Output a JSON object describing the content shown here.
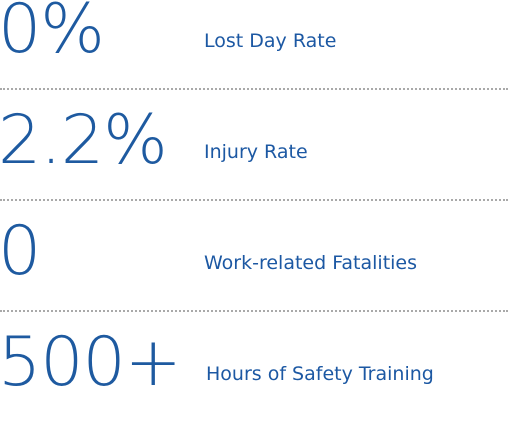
{
  "stats": [
    {
      "value": "0%",
      "label": "Lost Day Rate"
    },
    {
      "value": "2.2%",
      "label": "Injury Rate"
    },
    {
      "value": "0",
      "label": "Work-related Fatalities"
    },
    {
      "value": "500+",
      "label": "Hours of Safety Training"
    }
  ]
}
